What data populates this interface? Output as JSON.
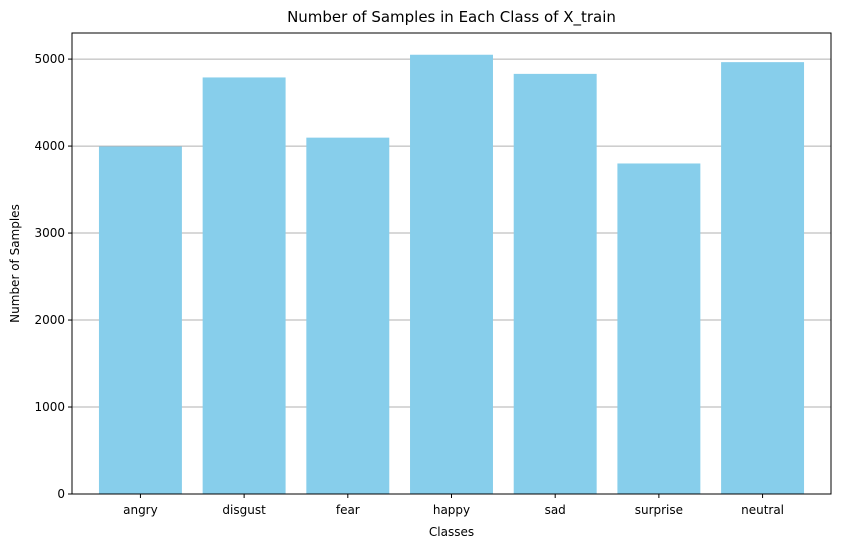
{
  "chart_data": {
    "type": "bar",
    "title": "Number of Samples in Each Class of X_train",
    "xlabel": "Classes",
    "ylabel": "Number of Samples",
    "categories": [
      "angry",
      "disgust",
      "fear",
      "happy",
      "sad",
      "surprise",
      "neutral"
    ],
    "values": [
      3995,
      4789,
      4097,
      5050,
      4830,
      3800,
      4965
    ],
    "ylim": [
      0,
      5300
    ],
    "yticks": [
      0,
      1000,
      2000,
      3000,
      4000,
      5000
    ],
    "grid": "y-axis",
    "bar_color": "#87ceeb",
    "grid_color": "#b0b0b0"
  }
}
